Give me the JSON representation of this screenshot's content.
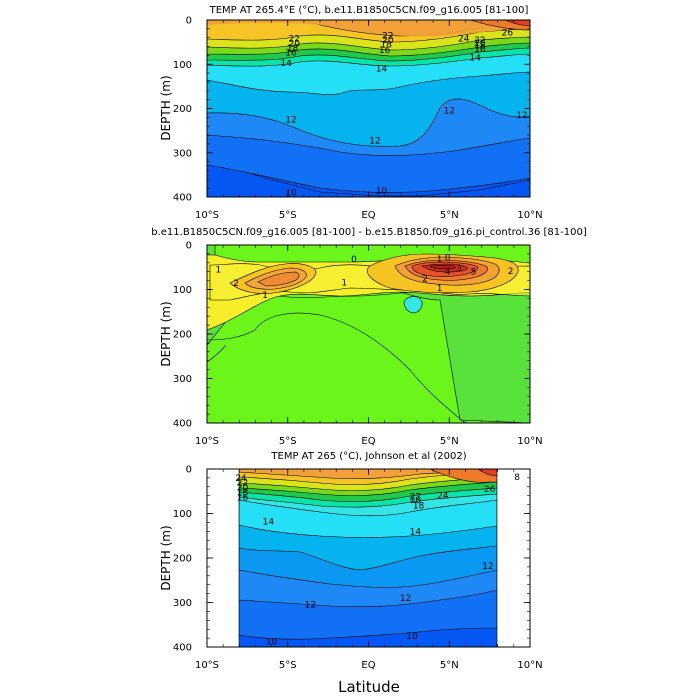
{
  "chart_data": [
    {
      "type": "contour",
      "title": "TEMP AT 265.4°E (°C), b.e11.B1850C5CN.f09_g16.005 [81-100]",
      "ylabel": "DEPTH (m)",
      "xlabel": "",
      "x_range": [
        -10,
        10
      ],
      "y_range": [
        0,
        400
      ],
      "x_ticks": [
        "10°S",
        "5°S",
        "EQ",
        "5°N",
        "10°N"
      ],
      "y_ticks": [
        "0",
        "100",
        "200",
        "300",
        "400"
      ],
      "contour_labels": [
        {
          "text": "22",
          "lat": -4.6,
          "depth": 42
        },
        {
          "text": "20",
          "lat": -4.6,
          "depth": 53
        },
        {
          "text": "18",
          "lat": -4.7,
          "depth": 63
        },
        {
          "text": "16",
          "lat": -4.8,
          "depth": 74
        },
        {
          "text": "14",
          "lat": -5.1,
          "depth": 97
        },
        {
          "text": "22",
          "lat": 1.2,
          "depth": 35
        },
        {
          "text": "20",
          "lat": 1.2,
          "depth": 45
        },
        {
          "text": "18",
          "lat": 1.1,
          "depth": 55
        },
        {
          "text": "16",
          "lat": 1.0,
          "depth": 68
        },
        {
          "text": "14",
          "lat": 0.8,
          "depth": 110
        },
        {
          "text": "14",
          "lat": 6.6,
          "depth": 85
        },
        {
          "text": "24",
          "lat": 5.9,
          "depth": 42
        },
        {
          "text": "22",
          "lat": 6.9,
          "depth": 45
        },
        {
          "text": "20",
          "lat": 6.9,
          "depth": 52
        },
        {
          "text": "18",
          "lat": 6.9,
          "depth": 58
        },
        {
          "text": "16",
          "lat": 6.9,
          "depth": 66
        },
        {
          "text": "26",
          "lat": 8.6,
          "depth": 28
        },
        {
          "text": "12",
          "lat": -4.8,
          "depth": 225
        },
        {
          "text": "12",
          "lat": 0.4,
          "depth": 272
        },
        {
          "text": "12",
          "lat": 5.0,
          "depth": 205
        },
        {
          "text": "12",
          "lat": 9.5,
          "depth": 215
        },
        {
          "text": "10",
          "lat": -4.8,
          "depth": 390
        },
        {
          "text": "10",
          "lat": 0.8,
          "depth": 385
        }
      ]
    },
    {
      "type": "contour",
      "title": "b.e11.B1850C5CN.f09_g16.005 [81-100] - b.e15.B1850.f09_g16.pi_control.36 [81-100]",
      "ylabel": "DEPTH (m)",
      "xlabel": "",
      "x_range": [
        -10,
        10
      ],
      "y_range": [
        0,
        400
      ],
      "x_ticks": [
        "10°S",
        "5°S",
        "EQ",
        "5°N",
        "10°N"
      ],
      "y_ticks": [
        "0",
        "100",
        "200",
        "300",
        "400"
      ],
      "contour_labels": [
        {
          "text": "1",
          "lat": -9.3,
          "depth": 55
        },
        {
          "text": "2",
          "lat": -8.2,
          "depth": 85
        },
        {
          "text": "1",
          "lat": -6.4,
          "depth": 112
        },
        {
          "text": "1",
          "lat": -1.5,
          "depth": 84
        },
        {
          "text": "0",
          "lat": -0.9,
          "depth": 32
        },
        {
          "text": "0",
          "lat": 4.9,
          "depth": 28
        },
        {
          "text": "1",
          "lat": 4.4,
          "depth": 32
        },
        {
          "text": "3",
          "lat": 5.6,
          "depth": 52
        },
        {
          "text": "4",
          "lat": 4.9,
          "depth": 60
        },
        {
          "text": "5",
          "lat": 6.5,
          "depth": 60
        },
        {
          "text": "2",
          "lat": 3.5,
          "depth": 75
        },
        {
          "text": "2",
          "lat": 8.8,
          "depth": 58
        },
        {
          "text": "1",
          "lat": 4.4,
          "depth": 97
        }
      ]
    },
    {
      "type": "contour",
      "title": "TEMP AT 265 (°C), Johnson et al (2002)",
      "ylabel": "DEPTH (m)",
      "xlabel": "Latitude",
      "x_range": [
        -10,
        10
      ],
      "y_range": [
        0,
        400
      ],
      "x_ticks": [
        "10°S",
        "5°S",
        "EQ",
        "5°N",
        "10°N"
      ],
      "y_ticks": [
        "0",
        "100",
        "200",
        "300",
        "400"
      ],
      "contour_labels": [
        {
          "text": "24",
          "lat": -7.9,
          "depth": 20
        },
        {
          "text": "22",
          "lat": -7.8,
          "depth": 30
        },
        {
          "text": "20",
          "lat": -7.8,
          "depth": 42
        },
        {
          "text": "18",
          "lat": -7.8,
          "depth": 53
        },
        {
          "text": "16",
          "lat": -7.8,
          "depth": 64
        },
        {
          "text": "14",
          "lat": -6.2,
          "depth": 118
        },
        {
          "text": "14",
          "lat": 2.9,
          "depth": 140
        },
        {
          "text": "22",
          "lat": 2.9,
          "depth": 62
        },
        {
          "text": "20",
          "lat": 2.9,
          "depth": 70
        },
        {
          "text": "18",
          "lat": 3.1,
          "depth": 82
        },
        {
          "text": "24",
          "lat": 4.6,
          "depth": 60
        },
        {
          "text": "26",
          "lat": 7.5,
          "depth": 45
        },
        {
          "text": "8",
          "lat": 9.2,
          "depth": 18
        },
        {
          "text": "12",
          "lat": 7.4,
          "depth": 218
        },
        {
          "text": "12",
          "lat": -3.6,
          "depth": 305
        },
        {
          "text": "12",
          "lat": 2.3,
          "depth": 290
        },
        {
          "text": "10",
          "lat": -6.0,
          "depth": 388
        },
        {
          "text": "10",
          "lat": 2.7,
          "depth": 375
        }
      ]
    }
  ]
}
